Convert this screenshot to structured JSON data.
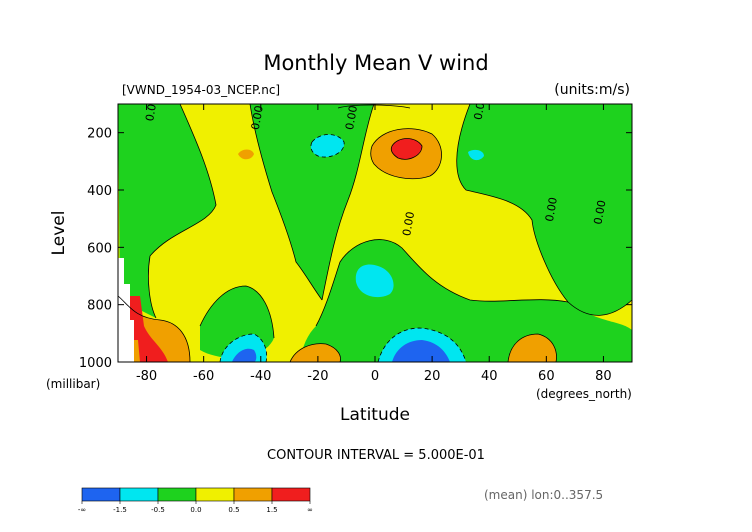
{
  "chart_data": {
    "type": "heatmap",
    "title": "Monthly Mean V wind",
    "file_label": "[VWND_1954-03_NCEP.nc]",
    "units_label": "(units:m/s)",
    "xlabel": "Latitude",
    "x_unit": "(degrees_north)",
    "ylabel": "Level",
    "y_unit": "(millibar)",
    "xlim": [
      -90,
      90
    ],
    "ylim": [
      1000,
      100
    ],
    "x_ticks": [
      -80,
      -60,
      -40,
      -20,
      0,
      20,
      40,
      60,
      80
    ],
    "y_ticks": [
      200,
      400,
      600,
      800,
      1000
    ],
    "contour_interval_text": "CONTOUR INTERVAL = 5.000E-01",
    "contour_labels": [
      {
        "text": "0.00",
        "lat": -77,
        "lev": 120
      },
      {
        "text": "0.00",
        "lat": -40,
        "lev": 150
      },
      {
        "text": "0.00",
        "lat": -7,
        "lev": 150
      },
      {
        "text": "0.00",
        "lat": 38,
        "lev": 115
      },
      {
        "text": "0.00",
        "lat": 13,
        "lev": 520
      },
      {
        "text": "0.00",
        "lat": 63,
        "lev": 470
      },
      {
        "text": "0.00",
        "lat": 80,
        "lev": 480
      }
    ],
    "colorbar": {
      "levels": [
        "-∞",
        "-1.5",
        "-0.5",
        "0.0",
        "0.5",
        "1.5",
        "∞"
      ],
      "colors": [
        "#1e64f0",
        "#00e6f0",
        "#1ed21e",
        "#f0f000",
        "#f0a000",
        "#f01e1e"
      ]
    },
    "footnote": "(mean) lon:0..357.5"
  }
}
